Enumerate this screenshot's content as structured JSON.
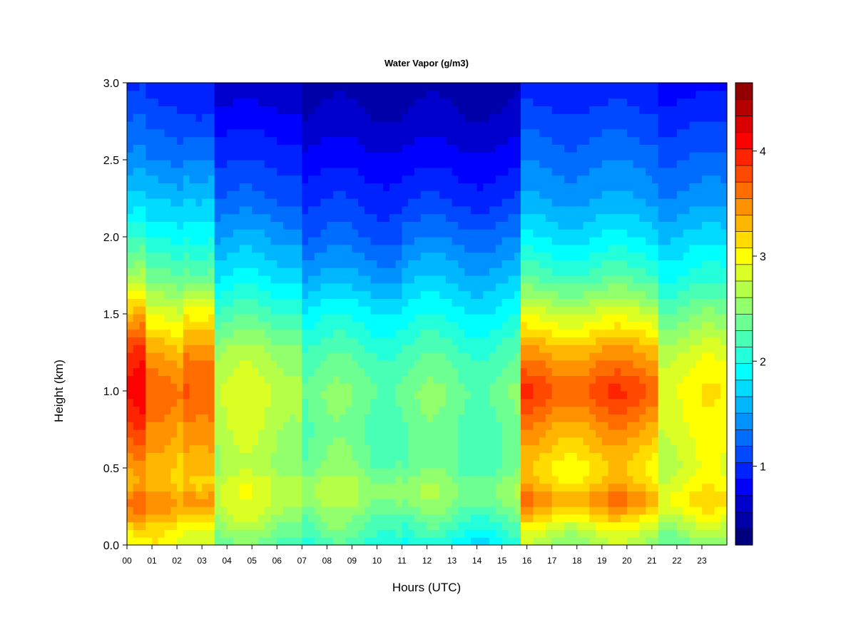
{
  "chart_data": {
    "type": "heatmap",
    "title": "Water Vapor (g/m3)",
    "xlabel": "Hours (UTC)",
    "ylabel": "Height (km)",
    "xlim": [
      0,
      24
    ],
    "ylim": [
      0,
      3
    ],
    "x_ticks": [
      "00",
      "01",
      "02",
      "03",
      "04",
      "05",
      "06",
      "07",
      "08",
      "09",
      "10",
      "11",
      "12",
      "13",
      "14",
      "15",
      "16",
      "17",
      "18",
      "19",
      "20",
      "21",
      "22",
      "23"
    ],
    "y_ticks": [
      "0.0",
      "0.5",
      "1.0",
      "1.5",
      "2.0",
      "2.5",
      "3.0"
    ],
    "colorbar": {
      "range": [
        0.25,
        4.65
      ],
      "ticks": [
        "1",
        "2",
        "3",
        "4"
      ],
      "tick_values": [
        1,
        2,
        3,
        4
      ],
      "levels": 22,
      "colors": [
        "#00007f",
        "#0000a8",
        "#0000cc",
        "#0000ff",
        "#0022ff",
        "#0049ff",
        "#006dff",
        "#0092ff",
        "#00b7ff",
        "#00dbff",
        "#00ffff",
        "#24ffdb",
        "#49ffb6",
        "#6dff92",
        "#92ff6d",
        "#b6ff49",
        "#dbff24",
        "#ffff00",
        "#ffdb00",
        "#ffb600",
        "#ff9200",
        "#ff6d00",
        "#ff4900",
        "#ff2400",
        "#ff0000",
        "#db0000",
        "#b60000",
        "#920000"
      ]
    },
    "grid": false,
    "heights_km": [
      0.0,
      0.1,
      0.2,
      0.3,
      0.4,
      0.5,
      0.75,
      1.0,
      1.25,
      1.5,
      1.75,
      2.0,
      2.25,
      2.5,
      2.75,
      3.0
    ],
    "periods": [
      {
        "hours": [
          0.0,
          0.8
        ],
        "profile": [
          2.9,
          3.1,
          3.5,
          3.6,
          3.3,
          3.4,
          3.8,
          4.1,
          3.9,
          3.3,
          2.6,
          2.1,
          1.7,
          1.4,
          1.2,
          1.0
        ]
      },
      {
        "hours": [
          0.8,
          2.2
        ],
        "profile": [
          2.9,
          3.0,
          3.3,
          3.4,
          3.2,
          3.2,
          3.4,
          3.6,
          3.3,
          2.8,
          2.3,
          1.9,
          1.6,
          1.3,
          1.1,
          0.9
        ]
      },
      {
        "hours": [
          2.2,
          3.5
        ],
        "profile": [
          2.9,
          3.0,
          3.4,
          3.6,
          3.3,
          3.4,
          3.6,
          3.8,
          3.6,
          3.1,
          2.4,
          2.0,
          1.7,
          1.4,
          1.1,
          0.9
        ]
      },
      {
        "hours": [
          3.5,
          7.0
        ],
        "profile": [
          2.3,
          2.5,
          2.7,
          2.8,
          2.8,
          2.6,
          2.7,
          2.8,
          2.6,
          2.2,
          1.8,
          1.5,
          1.2,
          1.0,
          0.8,
          0.6
        ]
      },
      {
        "hours": [
          7.0,
          11.0
        ],
        "profile": [
          2.1,
          2.3,
          2.4,
          2.6,
          2.6,
          2.4,
          2.3,
          2.4,
          2.2,
          1.9,
          1.5,
          1.2,
          1.0,
          0.8,
          0.6,
          0.5
        ]
      },
      {
        "hours": [
          11.0,
          15.7
        ],
        "profile": [
          1.9,
          2.1,
          2.3,
          2.5,
          2.5,
          2.3,
          2.3,
          2.4,
          2.2,
          1.9,
          1.6,
          1.3,
          1.0,
          0.8,
          0.6,
          0.5
        ]
      },
      {
        "hours": [
          15.7,
          21.3
        ],
        "profile": [
          2.6,
          2.8,
          3.2,
          3.5,
          3.2,
          3.1,
          3.4,
          3.8,
          3.4,
          2.8,
          2.2,
          1.8,
          1.5,
          1.3,
          1.1,
          0.9
        ]
      },
      {
        "hours": [
          21.3,
          24.0
        ],
        "profile": [
          2.4,
          2.6,
          2.9,
          3.1,
          2.9,
          2.8,
          2.9,
          3.0,
          2.8,
          2.4,
          2.0,
          1.7,
          1.4,
          1.2,
          1.0,
          0.8
        ]
      }
    ]
  }
}
